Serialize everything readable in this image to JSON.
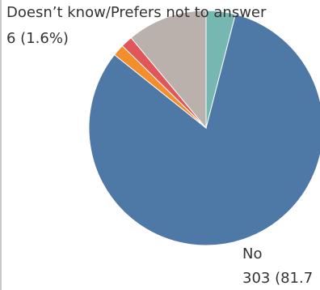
{
  "chart_data": {
    "type": "pie",
    "slices": [
      {
        "label": "",
        "value": 15,
        "color": "#76b7b2"
      },
      {
        "label": "No",
        "value": 303,
        "text": "303 (81.7",
        "color": "#4e79a7"
      },
      {
        "label": "",
        "value": 6,
        "color": "#f28e2b"
      },
      {
        "label": "Doesn’t know/Prefers not to answer",
        "value": 6,
        "text": "6 (1.6%)",
        "color": "#e15759"
      },
      {
        "label": "",
        "value": 41,
        "color": "#bab0ac"
      }
    ],
    "annotations": [
      {
        "line1": "Doesn’t know/Prefers not to answer",
        "line2": "6 (1.6%)"
      },
      {
        "line1": "No",
        "line2": "303 (81.7"
      }
    ]
  }
}
